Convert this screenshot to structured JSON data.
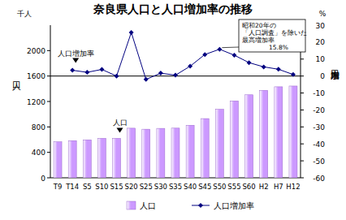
{
  "chart_data": {
    "type": "bar",
    "title": "奈良県人口と人口増加率の推移",
    "ylabel": "人口",
    "y_unit": "千人",
    "y2label": "人口増加率",
    "y2_unit": "%",
    "categories": [
      "T9",
      "T14",
      "S5",
      "S10",
      "S15",
      "S20",
      "S25",
      "S30",
      "S35",
      "S40",
      "S45",
      "S50",
      "S55",
      "S60",
      "H2",
      "H7",
      "H12"
    ],
    "series": [
      {
        "name": "人口",
        "type": "bar",
        "color": "#cc99ff",
        "values": [
          565,
          584,
          597,
          620,
          620,
          780,
          764,
          777,
          781,
          826,
          931,
          1077,
          1209,
          1305,
          1375,
          1431,
          1443
        ]
      },
      {
        "name": "人口増加率",
        "type": "line",
        "axis": "y2",
        "color": "#000080",
        "marker": "diamond",
        "values": [
          null,
          3.4,
          2.2,
          3.9,
          0.0,
          25.7,
          -2.0,
          1.7,
          0.5,
          5.8,
          12.7,
          15.8,
          12.3,
          7.9,
          5.4,
          4.0,
          0.9
        ]
      }
    ],
    "ylim": [
      0,
      2400
    ],
    "yticks": [
      0,
      400,
      800,
      1200,
      1600,
      2000
    ],
    "y2lim": [
      -60,
      30
    ],
    "y2ticks": [
      30,
      20,
      10,
      0,
      -10,
      -20,
      -30,
      -40,
      -50,
      -60
    ],
    "grid": false,
    "legend": "bottom",
    "annotations": [
      {
        "text": "人口増加率",
        "category": 1,
        "series": 1
      },
      {
        "text": "人口",
        "category": 4,
        "series": 0
      },
      {
        "text": [
          "昭和20年の",
          "「人口調査」を除いた",
          "最高増加率",
          "15.8%"
        ],
        "category": 11,
        "series": 1
      }
    ]
  }
}
